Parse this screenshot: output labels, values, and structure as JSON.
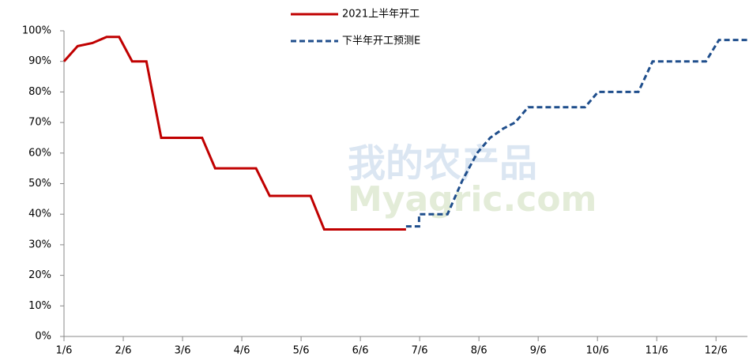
{
  "chart_data": {
    "type": "line",
    "watermark": [
      "我的农产品",
      "Myagric.com"
    ],
    "series": [
      {
        "name": "2021上半年开工",
        "color": "#c00000",
        "dash": false,
        "x": [
          1.0,
          1.23,
          1.48,
          1.72,
          1.93,
          2.15,
          2.39,
          2.64,
          3.33,
          3.55,
          4.24,
          4.47,
          5.16,
          5.39,
          6.77
        ],
        "values": [
          90,
          95,
          96,
          98,
          98,
          90,
          90,
          65,
          65,
          55,
          55,
          46,
          46,
          35,
          35
        ]
      },
      {
        "name": "下半年开工预测E",
        "color": "#1f4e8c",
        "dash": true,
        "x": [
          6.77,
          6.99,
          6.99,
          7.47,
          7.72,
          7.97,
          8.19,
          8.41,
          8.61,
          8.83,
          9.79,
          10.01,
          10.69,
          10.93,
          11.83,
          12.05,
          12.53
        ],
        "values": [
          36,
          36,
          40,
          40,
          51,
          60,
          65,
          68,
          70,
          75,
          75,
          80,
          80,
          90,
          90,
          97,
          97
        ]
      }
    ],
    "xlim": [
      1,
      12.53
    ],
    "xticks": [
      {
        "value": 1,
        "label": "1/6"
      },
      {
        "value": 2,
        "label": "2/6"
      },
      {
        "value": 3,
        "label": "3/6"
      },
      {
        "value": 4,
        "label": "4/6"
      },
      {
        "value": 5,
        "label": "5/6"
      },
      {
        "value": 6,
        "label": "6/6"
      },
      {
        "value": 7,
        "label": "7/6"
      },
      {
        "value": 8,
        "label": "8/6"
      },
      {
        "value": 9,
        "label": "9/6"
      },
      {
        "value": 10,
        "label": "10/6"
      },
      {
        "value": 11,
        "label": "11/6"
      },
      {
        "value": 12,
        "label": "12/6"
      }
    ],
    "ylim": [
      0,
      100
    ],
    "yticks": [
      {
        "value": 0,
        "label": "0%"
      },
      {
        "value": 10,
        "label": "10%"
      },
      {
        "value": 20,
        "label": "20%"
      },
      {
        "value": 30,
        "label": "30%"
      },
      {
        "value": 40,
        "label": "40%"
      },
      {
        "value": 50,
        "label": "50%"
      },
      {
        "value": 60,
        "label": "60%"
      },
      {
        "value": 70,
        "label": "70%"
      },
      {
        "value": 80,
        "label": "80%"
      },
      {
        "value": 90,
        "label": "90%"
      },
      {
        "value": 100,
        "label": "100%"
      }
    ],
    "grid": false
  }
}
